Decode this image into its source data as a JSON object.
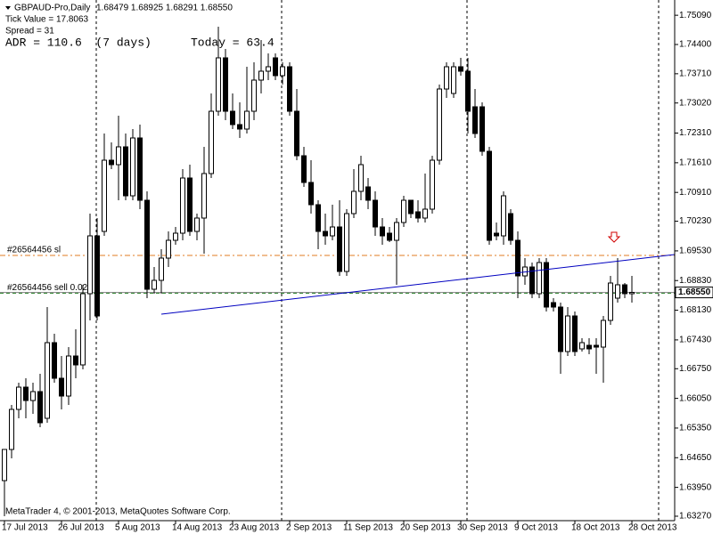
{
  "chart_data": {
    "type": "candlestick",
    "symbol": "GBPAUD-Pro,Daily",
    "quote": "1.68479 1.68925 1.68291 1.68550",
    "tick_value": "Tick Value = 17.8063",
    "spread": "Spread = 31",
    "adr": "ADR = 110.6  (7 days)",
    "today": "Today = 63.4",
    "footer": "MetaTrader 4, © 2001-2013, MetaQuotes Software Corp.",
    "categories": [
      "17 Jul 2013",
      null,
      null,
      null,
      null,
      null,
      null,
      null,
      "26 Jul 2013",
      null,
      null,
      null,
      null,
      null,
      null,
      null,
      "5 Aug 2013",
      null,
      null,
      null,
      null,
      null,
      null,
      null,
      "14 Aug 2013",
      null,
      null,
      null,
      null,
      null,
      null,
      null,
      "23 Aug 2013",
      null,
      null,
      null,
      null,
      null,
      null,
      null,
      "2 Sep 2013",
      null,
      null,
      null,
      null,
      null,
      null,
      null,
      "11 Sep 2013",
      null,
      null,
      null,
      null,
      null,
      null,
      null,
      "20 Sep 2013",
      null,
      null,
      null,
      null,
      null,
      null,
      null,
      "30 Sep 2013",
      null,
      null,
      null,
      null,
      null,
      null,
      null,
      "9 Oct 2013",
      null,
      null,
      null,
      null,
      null,
      null,
      null,
      "18 Oct 2013",
      null,
      null,
      null,
      null,
      null,
      null,
      null,
      "28 Oct 2013"
    ],
    "open": [
      1.6411,
      1.64845,
      1.6579,
      1.66315,
      1.66,
      1.6621,
      1.6558,
      1.67365,
      1.66525,
      1.66105,
      1.6705,
      1.6684,
      1.6852,
      1.69885,
      1.6999,
      1.7167,
      1.71565,
      1.71985,
      1.7083,
      1.72195,
      1.70725,
      1.68625,
      1.68835,
      1.6936,
      1.6978,
      1.69948,
      1.7125,
      1.6999,
      1.70305,
      1.71355,
      1.72825,
      1.74085,
      1.72825,
      1.7251,
      1.72405,
      1.72825,
      1.7356,
      1.7377,
      1.74085,
      1.73665,
      1.73875,
      1.72825,
      1.71775,
      1.71145,
      1.7062,
      1.6999,
      1.69885,
      1.70095,
      1.69045,
      1.7041,
      1.70935,
      1.7104,
      1.70725,
      1.70095,
      1.69948,
      1.6978,
      1.702,
      1.70725,
      1.70452,
      1.70305,
      1.70515,
      1.7167,
      1.7335,
      1.73245,
      1.73875,
      1.7377,
      1.7293,
      1.7293,
      1.7188,
      1.69948,
      1.69885,
      1.7041,
      1.6978,
      1.6894,
      1.6915,
      1.6852,
      1.69255,
      1.6831,
      1.68205,
      1.67155,
      1.67995,
      1.67218,
      1.67302,
      1.67302,
      1.6726,
      1.6789,
      1.68415,
      1.6873,
      1.6852
    ],
    "high": [
      1.64845,
      1.65895,
      1.6642,
      1.66525,
      1.6642,
      1.6663,
      1.68205,
      1.67575,
      1.6705,
      1.6726,
      1.6768,
      1.6873,
      1.7041,
      1.70305,
      1.723,
      1.7209,
      1.7272,
      1.723,
      1.72405,
      1.7251,
      1.70935,
      1.6915,
      1.6957,
      1.6999,
      1.70095,
      1.7146,
      1.71565,
      1.7041,
      1.71985,
      1.73245,
      1.7482,
      1.74295,
      1.73245,
      1.73035,
      1.73875,
      1.7398,
      1.74505,
      1.7419,
      1.7419,
      1.7398,
      1.7398,
      1.7335,
      1.71985,
      1.7167,
      1.70725,
      1.7041,
      1.7062,
      1.70725,
      1.70515,
      1.7146,
      1.71775,
      1.7125,
      1.70935,
      1.70305,
      1.70095,
      1.70305,
      1.7083,
      1.70725,
      1.70725,
      1.71355,
      1.71775,
      1.73455,
      1.7398,
      1.7398,
      1.74085,
      1.74085,
      1.7335,
      1.73035,
      1.71985,
      1.702,
      1.70935,
      1.70515,
      1.6999,
      1.6936,
      1.69255,
      1.6936,
      1.6936,
      1.68415,
      1.6831,
      1.68205,
      1.681,
      1.6747,
      1.6747,
      1.6747,
      1.67995,
      1.6894,
      1.6936,
      1.68772,
      1.6894
    ],
    "low": [
      1.6327,
      1.64635,
      1.6558,
      1.6558,
      1.65685,
      1.6537,
      1.65475,
      1.6642,
      1.6579,
      1.65895,
      1.66525,
      1.66735,
      1.6789,
      1.6789,
      1.69885,
      1.7146,
      1.70725,
      1.70725,
      1.70725,
      1.70515,
      1.68415,
      1.6852,
      1.6852,
      1.6915,
      1.69675,
      1.6978,
      1.69885,
      1.6978,
      1.69465,
      1.7125,
      1.7272,
      1.72615,
      1.72405,
      1.72195,
      1.723,
      1.72615,
      1.73245,
      1.7356,
      1.7356,
      1.73455,
      1.7272,
      1.7167,
      1.7104,
      1.7041,
      1.6957,
      1.69675,
      1.6978,
      1.6894,
      1.6894,
      1.70305,
      1.70725,
      1.70515,
      1.69885,
      1.69675,
      1.69738,
      1.6873,
      1.70095,
      1.70305,
      1.702,
      1.702,
      1.7041,
      1.71565,
      1.7314,
      1.7314,
      1.73665,
      1.723,
      1.72195,
      1.71775,
      1.69675,
      1.6978,
      1.69675,
      1.69675,
      1.68415,
      1.6873,
      1.68415,
      1.68415,
      1.681,
      1.681,
      1.6663,
      1.6705,
      1.6705,
      1.67155,
      1.67092,
      1.6663,
      1.6642,
      1.67785,
      1.6831,
      1.68415,
      1.6831
    ],
    "close": [
      1.64845,
      1.6579,
      1.66315,
      1.66,
      1.6621,
      1.65475,
      1.67365,
      1.66525,
      1.66105,
      1.6705,
      1.6684,
      1.6852,
      1.69885,
      1.67995,
      1.7167,
      1.71565,
      1.71985,
      1.7083,
      1.72195,
      1.70725,
      1.68625,
      1.68835,
      1.6936,
      1.6978,
      1.69948,
      1.7125,
      1.6999,
      1.70305,
      1.71355,
      1.72825,
      1.74085,
      1.72825,
      1.7251,
      1.72405,
      1.72825,
      1.7356,
      1.7377,
      1.73875,
      1.73665,
      1.73875,
      1.72825,
      1.71775,
      1.71145,
      1.7062,
      1.6999,
      1.69885,
      1.70095,
      1.69045,
      1.7041,
      1.70935,
      1.71565,
      1.70725,
      1.70095,
      1.69885,
      1.6978,
      1.702,
      1.70725,
      1.7041,
      1.70305,
      1.70515,
      1.7167,
      1.7335,
      1.73875,
      1.73875,
      1.7377,
      1.72825,
      1.723,
      1.7188,
      1.6978,
      1.69885,
      1.7083,
      1.6978,
      1.6894,
      1.6915,
      1.6852,
      1.69255,
      1.68205,
      1.68205,
      1.67155,
      1.67995,
      1.67155,
      1.67365,
      1.67218,
      1.6726,
      1.6789,
      1.68772,
      1.6873,
      1.6852,
      1.6855
    ],
    "up_color": "#ffffff",
    "down_color": "#000000",
    "ylim": [
      1.63165,
      1.7545
    ],
    "yticks": [
      {
        "value": 1.7509,
        "label": "1.75090"
      },
      {
        "value": 1.744,
        "label": "1.74400"
      },
      {
        "value": 1.7371,
        "label": "1.73710"
      },
      {
        "value": 1.7302,
        "label": "1.73020"
      },
      {
        "value": 1.7231,
        "label": "1.72310"
      },
      {
        "value": 1.7161,
        "label": "1.71610"
      },
      {
        "value": 1.7091,
        "label": "1.70910"
      },
      {
        "value": 1.7023,
        "label": "1.70230"
      },
      {
        "value": 1.6953,
        "label": "1.69530"
      },
      {
        "value": 1.6883,
        "label": "1.68830"
      },
      {
        "value": 1.6813,
        "label": "1.68130"
      },
      {
        "value": 1.6743,
        "label": "1.67430"
      },
      {
        "value": 1.6675,
        "label": "1.66750"
      },
      {
        "value": 1.6605,
        "label": "1.66050"
      },
      {
        "value": 1.6535,
        "label": "1.65350"
      },
      {
        "value": 1.6465,
        "label": "1.64650"
      },
      {
        "value": 1.6395,
        "label": "1.63950"
      },
      {
        "value": 1.6327,
        "label": "1.63270"
      }
    ],
    "bid": {
      "value": 1.6855,
      "label": "1.68550"
    },
    "order_lines": [
      {
        "label": "#26564456 sl",
        "value": 1.69423,
        "color": "#e07b20"
      },
      {
        "label": "#26564456 sell 0.02",
        "value": 1.6853,
        "color": "#2e8b2e"
      }
    ],
    "trendline": {
      "x": [
        22,
        94
      ],
      "values": [
        1.68037,
        1.69444
      ],
      "color": "#0000c0"
    }
  }
}
